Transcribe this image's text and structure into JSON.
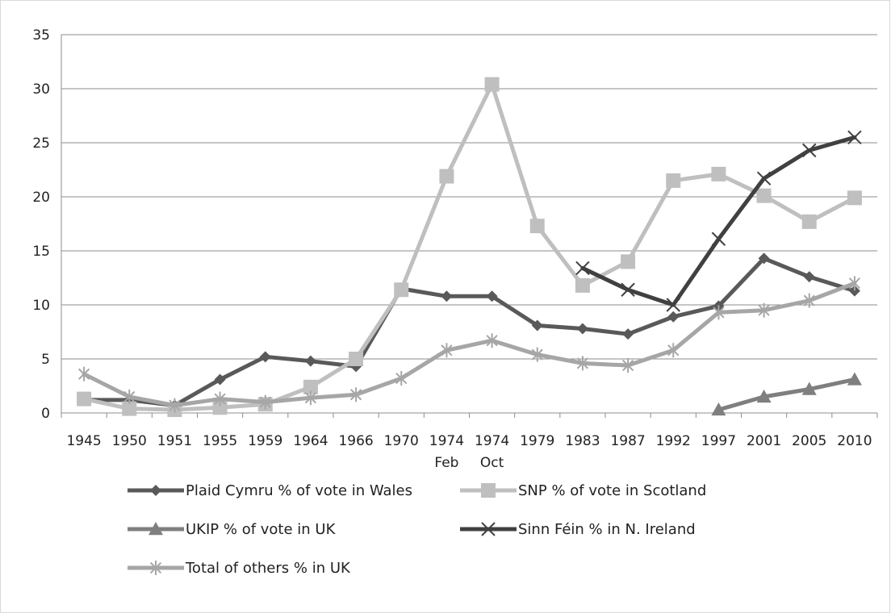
{
  "chart_data": {
    "type": "line",
    "categories": [
      [
        "1945"
      ],
      [
        "1950"
      ],
      [
        "1951"
      ],
      [
        "1955"
      ],
      [
        "1959"
      ],
      [
        "1964"
      ],
      [
        "1966"
      ],
      [
        "1970"
      ],
      [
        "1974",
        "Feb"
      ],
      [
        "1974",
        "Oct"
      ],
      [
        "1979"
      ],
      [
        "1983"
      ],
      [
        "1987"
      ],
      [
        "1992"
      ],
      [
        "1997"
      ],
      [
        "2001"
      ],
      [
        "2005"
      ],
      [
        "2010"
      ]
    ],
    "ylim": [
      0,
      35
    ],
    "yticks": [
      0,
      5,
      10,
      15,
      20,
      25,
      30,
      35
    ],
    "grid": "horizontal",
    "legend_position": "bottom",
    "series": [
      {
        "name": "Plaid Cymru % of vote in Wales",
        "color": "#595959",
        "marker": "diamond",
        "values": [
          1.2,
          1.2,
          0.7,
          3.1,
          5.2,
          4.8,
          4.3,
          11.5,
          10.8,
          10.8,
          8.1,
          7.8,
          7.3,
          8.9,
          9.9,
          14.3,
          12.6,
          11.3
        ]
      },
      {
        "name": "SNP % of vote in Scotland",
        "color": "#bfbfbf",
        "marker": "square",
        "values": [
          1.3,
          0.4,
          0.3,
          0.5,
          0.8,
          2.4,
          5.0,
          11.4,
          21.9,
          30.4,
          17.3,
          11.8,
          14.0,
          21.5,
          22.1,
          20.1,
          17.7,
          19.9
        ]
      },
      {
        "name": "UKIP % of vote in UK",
        "color": "#7f7f7f",
        "marker": "triangle",
        "values": [
          null,
          null,
          null,
          null,
          null,
          null,
          null,
          null,
          null,
          null,
          null,
          null,
          null,
          null,
          0.3,
          1.5,
          2.2,
          3.1
        ]
      },
      {
        "name": "Sinn Féin % in N. Ireland",
        "color": "#404040",
        "marker": "x",
        "values": [
          null,
          null,
          null,
          null,
          null,
          null,
          null,
          null,
          null,
          null,
          null,
          13.4,
          11.4,
          10.0,
          16.1,
          21.7,
          24.3,
          25.5
        ]
      },
      {
        "name": "Total of others % in UK",
        "color": "#a6a6a6",
        "marker": "star",
        "values": [
          3.6,
          1.5,
          0.7,
          1.3,
          1.0,
          1.4,
          1.7,
          3.2,
          5.8,
          6.7,
          5.4,
          4.6,
          4.4,
          5.8,
          9.3,
          9.5,
          10.4,
          12.0
        ]
      }
    ]
  }
}
